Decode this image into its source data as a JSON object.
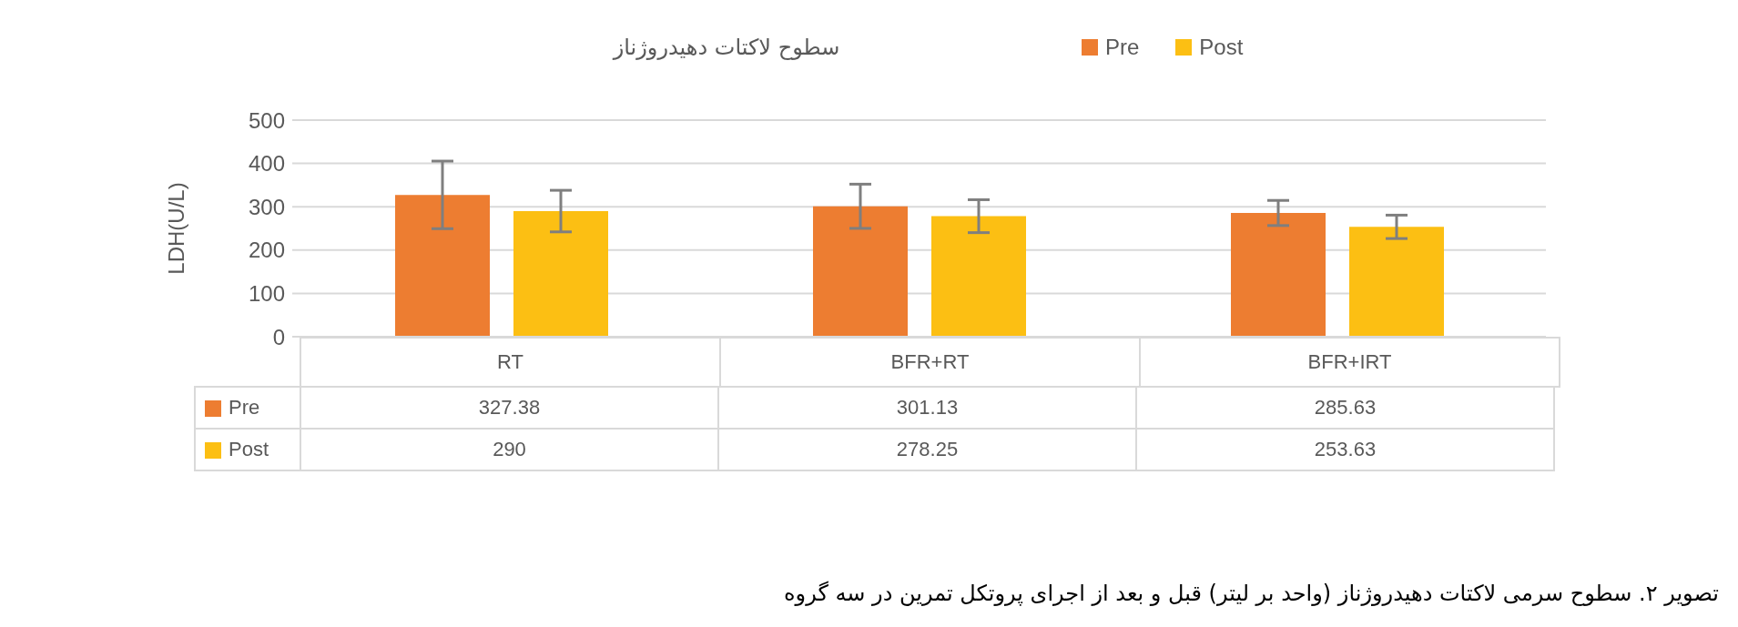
{
  "chart_data": {
    "type": "bar",
    "title": "سطوح لاکتات دهیدروژناز",
    "ylabel": "LDH(U/L)",
    "categories": [
      "RT",
      "BFR+RT",
      "BFR+IRT"
    ],
    "series": [
      {
        "name": "Pre",
        "color": "#ed7d31",
        "values": [
          327.38,
          301.13,
          285.63
        ],
        "errors": [
          78,
          51,
          29
        ]
      },
      {
        "name": "Post",
        "color": "#fcbf13",
        "values": [
          290,
          278.25,
          253.63
        ],
        "errors": [
          48,
          38,
          27
        ]
      }
    ],
    "ylim": [
      0,
      500
    ],
    "yticks": [
      0,
      100,
      200,
      300,
      400,
      500
    ],
    "grid": "y",
    "legend": "top right",
    "data_labels": true,
    "annotations": [
      "تصویر ۲. سطوح سرمی لاکتات دهیدروژناز (واحد بر لیتر) قبل و بعد از اجرای پروتکل تمرین در سه گروه"
    ]
  }
}
